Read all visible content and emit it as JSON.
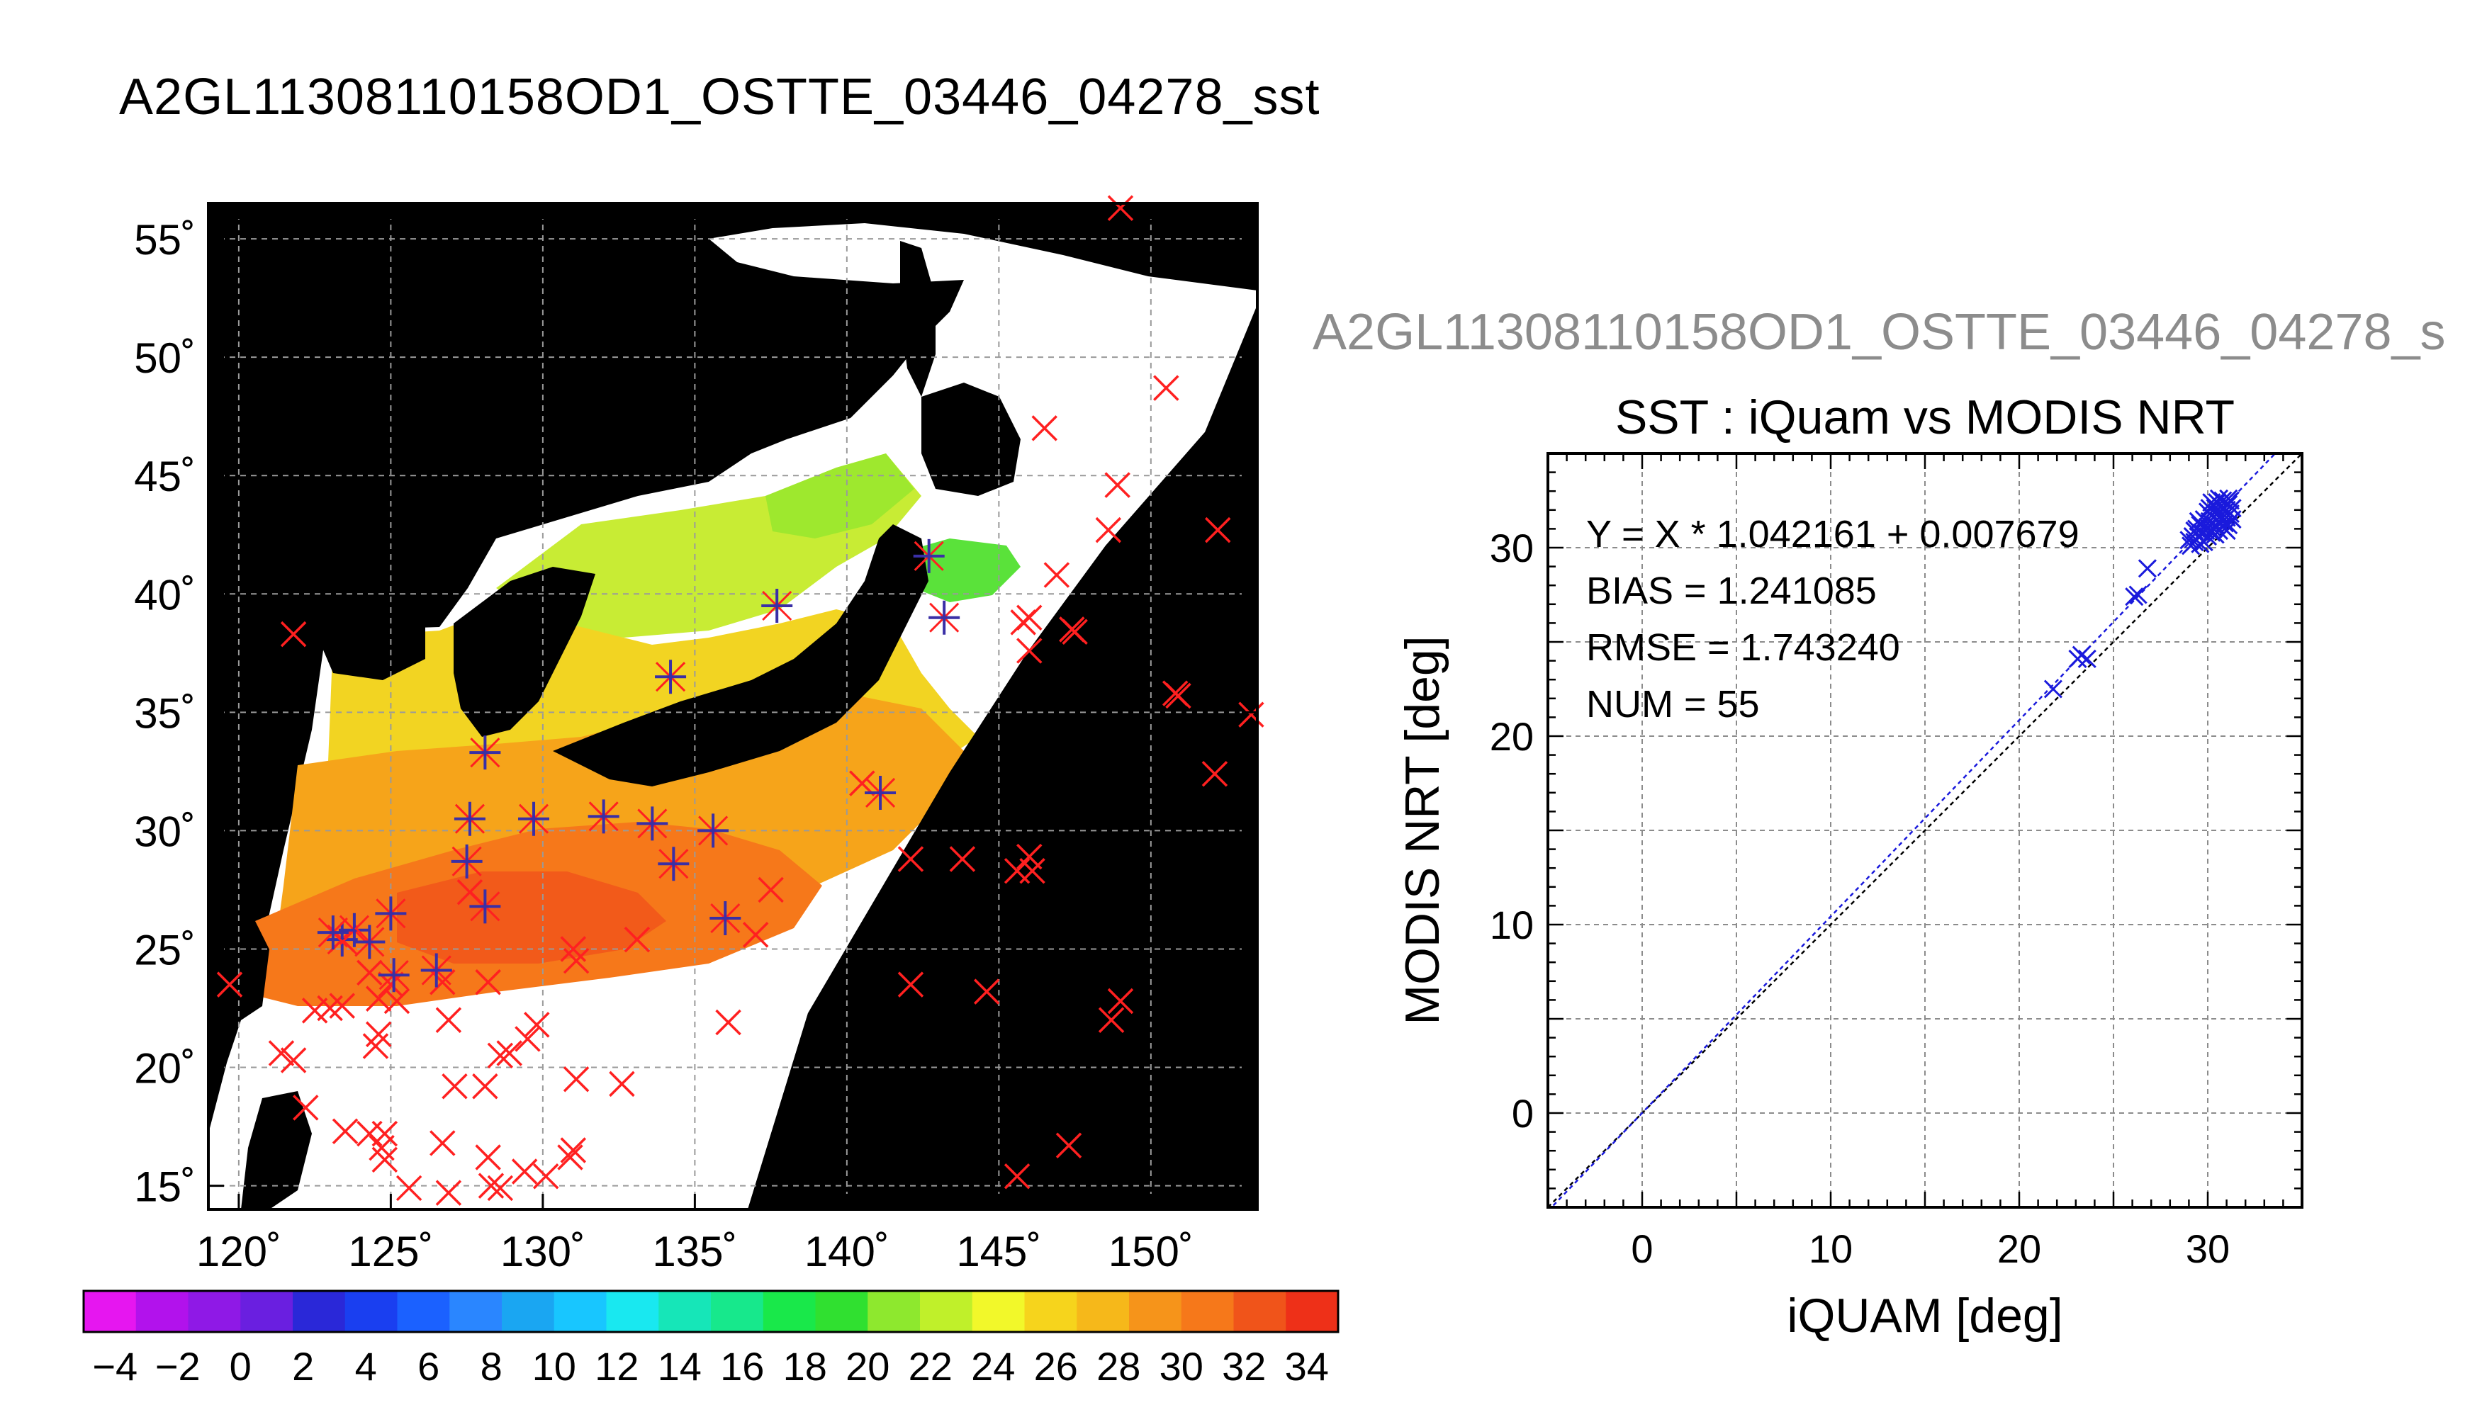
{
  "page": {
    "main_title": "A2GL11308110158OD1_OSTTE_03446_04278_sst",
    "scatter_suptitle": "A2GL11308110158OD1_OSTTE_03446_04278_s"
  },
  "chart_data": [
    {
      "type": "map",
      "title": "A2GL11308110158OD1_OSTTE_03446_04278_sst",
      "xlim": [
        119,
        153.5
      ],
      "ylim": [
        14,
        56.5
      ],
      "x_ticks": [
        120,
        125,
        130,
        135,
        140,
        145,
        150
      ],
      "y_ticks": [
        15,
        20,
        25,
        30,
        35,
        40,
        45,
        50,
        55
      ],
      "x_tick_labels": [
        "120˚",
        "125˚",
        "130˚",
        "135˚",
        "140˚",
        "145˚",
        "150˚"
      ],
      "y_tick_labels": [
        "15˚",
        "20˚",
        "25˚",
        "30˚",
        "35˚",
        "40˚",
        "45˚",
        "50˚",
        "55˚"
      ],
      "grid": true,
      "swath_edge_color": "#000000",
      "series": [
        {
          "marker": "x",
          "color": "#ff2020",
          "points": [
            [
              149.0,
              56.3
            ],
            [
              150.5,
              48.7
            ],
            [
              146.5,
              47.0
            ],
            [
              148.9,
              44.6
            ],
            [
              148.6,
              42.7
            ],
            [
              152.2,
              42.7
            ],
            [
              146.9,
              40.8
            ],
            [
              145.8,
              38.8
            ],
            [
              146.0,
              39.0
            ],
            [
              147.4,
              38.5
            ],
            [
              147.5,
              38.4
            ],
            [
              146.0,
              37.6
            ],
            [
              150.8,
              35.8
            ],
            [
              150.9,
              35.7
            ],
            [
              153.3,
              34.9
            ],
            [
              152.1,
              32.4
            ],
            [
              121.8,
              38.3
            ],
            [
              140.5,
              32.0
            ],
            [
              142.1,
              28.8
            ],
            [
              143.8,
              28.8
            ],
            [
              146.0,
              28.9
            ],
            [
              145.6,
              28.3
            ],
            [
              146.1,
              28.3
            ],
            [
              149.0,
              22.8
            ],
            [
              148.7,
              22.0
            ],
            [
              144.6,
              23.2
            ],
            [
              142.1,
              23.5
            ],
            [
              147.3,
              16.7
            ],
            [
              145.6,
              15.4
            ],
            [
              136.1,
              21.9
            ],
            [
              137.0,
              25.6
            ],
            [
              137.5,
              27.5
            ],
            [
              133.1,
              25.4
            ],
            [
              131.1,
              24.5
            ],
            [
              131.0,
              25.0
            ],
            [
              128.2,
              23.6
            ],
            [
              126.7,
              23.6
            ],
            [
              126.9,
              22.0
            ],
            [
              129.8,
              21.8
            ],
            [
              129.5,
              21.2
            ],
            [
              128.9,
              20.6
            ],
            [
              128.6,
              20.5
            ],
            [
              131.1,
              19.5
            ],
            [
              132.6,
              19.3
            ],
            [
              128.1,
              19.2
            ],
            [
              127.1,
              19.2
            ],
            [
              126.7,
              16.8
            ],
            [
              128.2,
              16.2
            ],
            [
              129.4,
              15.6
            ],
            [
              130.1,
              15.4
            ],
            [
              128.3,
              15.0
            ],
            [
              128.6,
              14.9
            ],
            [
              126.9,
              14.7
            ],
            [
              125.6,
              14.9
            ],
            [
              130.9,
              16.2
            ],
            [
              131.0,
              16.5
            ],
            [
              124.8,
              17.2
            ],
            [
              123.5,
              17.3
            ],
            [
              124.3,
              17.2
            ],
            [
              124.7,
              16.6
            ],
            [
              124.8,
              16.1
            ],
            [
              122.2,
              18.3
            ],
            [
              124.5,
              20.9
            ],
            [
              124.6,
              21.4
            ],
            [
              121.4,
              20.6
            ],
            [
              121.8,
              20.3
            ],
            [
              119.7,
              23.5
            ],
            [
              122.5,
              22.4
            ],
            [
              123.0,
              22.5
            ],
            [
              123.4,
              22.6
            ],
            [
              124.6,
              22.9
            ],
            [
              125.0,
              23.5
            ],
            [
              124.3,
              24.0
            ],
            [
              125.2,
              22.8
            ],
            [
              123.4,
              25.4
            ],
            [
              127.6,
              27.4
            ]
          ]
        },
        {
          "marker": "star",
          "color": "#3a2fa6",
          "points": [
            [
              142.7,
              41.6
            ],
            [
              143.2,
              39.0
            ],
            [
              137.7,
              39.5
            ],
            [
              135.6,
              30.0
            ],
            [
              134.2,
              36.5
            ],
            [
              128.1,
              33.3
            ],
            [
              127.6,
              30.5
            ],
            [
              127.5,
              28.7
            ],
            [
              129.7,
              30.5
            ],
            [
              132.0,
              30.6
            ],
            [
              133.6,
              30.3
            ],
            [
              134.3,
              28.6
            ],
            [
              136.0,
              26.3
            ],
            [
              128.1,
              26.8
            ],
            [
              125.0,
              26.5
            ],
            [
              123.4,
              25.4
            ],
            [
              123.8,
              25.8
            ],
            [
              124.3,
              25.3
            ],
            [
              123.1,
              25.7
            ],
            [
              126.5,
              24.1
            ],
            [
              125.1,
              23.9
            ],
            [
              141.1,
              31.6
            ]
          ]
        }
      ]
    },
    {
      "type": "colorbar",
      "tick_labels": [
        "−4",
        "−2",
        "0",
        "2",
        "4",
        "6",
        "8",
        "10",
        "12",
        "14",
        "16",
        "18",
        "20",
        "22",
        "24",
        "26",
        "28",
        "30",
        "32",
        "34"
      ],
      "range": [
        -5,
        35
      ],
      "colors": [
        "#e616f0",
        "#b212ec",
        "#8f19e6",
        "#6a1fe0",
        "#2a28d8",
        "#1a3ff0",
        "#1b61ff",
        "#2a86ff",
        "#1aa6f2",
        "#18c6ff",
        "#19e8f0",
        "#16e6b8",
        "#17e88c",
        "#19e84a",
        "#30e030",
        "#8ee82e",
        "#c0f02a",
        "#f2f82a",
        "#f6d41c",
        "#f6b81a",
        "#f6941a",
        "#f6781a",
        "#f0541a",
        "#ee3018"
      ]
    },
    {
      "type": "scatter",
      "title": "SST : iQuam vs MODIS NRT",
      "xlabel": "iQUAM [deg]",
      "ylabel": "MODIS NRT [deg]",
      "xlim": [
        -5,
        35
      ],
      "ylim": [
        -5,
        35
      ],
      "x_ticks": [
        0,
        10,
        20,
        30
      ],
      "y_ticks": [
        0,
        10,
        20,
        30
      ],
      "grid": true,
      "annotations": [
        "Y = X * 1.042161 + 0.007679",
        "BIAS = 1.241085",
        "RMSE = 1.743240",
        "NUM = 55"
      ],
      "fit": {
        "slope": 1.042161,
        "intercept": 0.007679,
        "color": "#1a1adc"
      },
      "identity_color": "#000000",
      "marker_color": "#1a1adc",
      "points": [
        [
          21.8,
          22.5
        ],
        [
          23.1,
          24.1
        ],
        [
          23.6,
          24.1
        ],
        [
          23.3,
          24.3
        ],
        [
          26.1,
          27.4
        ],
        [
          26.3,
          27.5
        ],
        [
          26.8,
          28.9
        ],
        [
          29.1,
          30.1
        ],
        [
          29.2,
          30.6
        ],
        [
          29.3,
          30.9
        ],
        [
          29.4,
          31.0
        ],
        [
          29.5,
          30.6
        ],
        [
          29.6,
          30.2
        ],
        [
          29.6,
          31.2
        ],
        [
          29.7,
          30.8
        ],
        [
          29.8,
          31.5
        ],
        [
          29.9,
          30.9
        ],
        [
          30.0,
          31.1
        ],
        [
          30.0,
          31.9
        ],
        [
          30.1,
          32.1
        ],
        [
          30.1,
          31.4
        ],
        [
          30.2,
          30.8
        ],
        [
          30.2,
          32.4
        ],
        [
          30.3,
          31.6
        ],
        [
          30.3,
          31.0
        ],
        [
          30.4,
          32.1
        ],
        [
          30.4,
          31.2
        ],
        [
          30.5,
          32.4
        ],
        [
          30.5,
          31.8
        ],
        [
          30.6,
          30.9
        ],
        [
          30.6,
          31.4
        ],
        [
          30.7,
          32.2
        ],
        [
          30.7,
          31.7
        ],
        [
          30.8,
          31.1
        ],
        [
          30.8,
          32.5
        ],
        [
          30.9,
          31.9
        ],
        [
          30.9,
          31.3
        ],
        [
          31.0,
          32.0
        ],
        [
          31.0,
          31.6
        ],
        [
          31.1,
          32.3
        ],
        [
          31.1,
          31.2
        ],
        [
          31.2,
          31.8
        ],
        [
          31.2,
          32.5
        ],
        [
          31.3,
          31.5
        ],
        [
          31.3,
          32.1
        ],
        [
          29.0,
          30.4
        ],
        [
          29.8,
          30.3
        ],
        [
          30.4,
          30.7
        ],
        [
          31.0,
          30.9
        ],
        [
          30.2,
          31.7
        ],
        [
          29.5,
          31.4
        ],
        [
          30.6,
          32.6
        ],
        [
          31.1,
          32.6
        ],
        [
          30.0,
          30.6
        ],
        [
          29.3,
          30.3
        ]
      ]
    }
  ]
}
